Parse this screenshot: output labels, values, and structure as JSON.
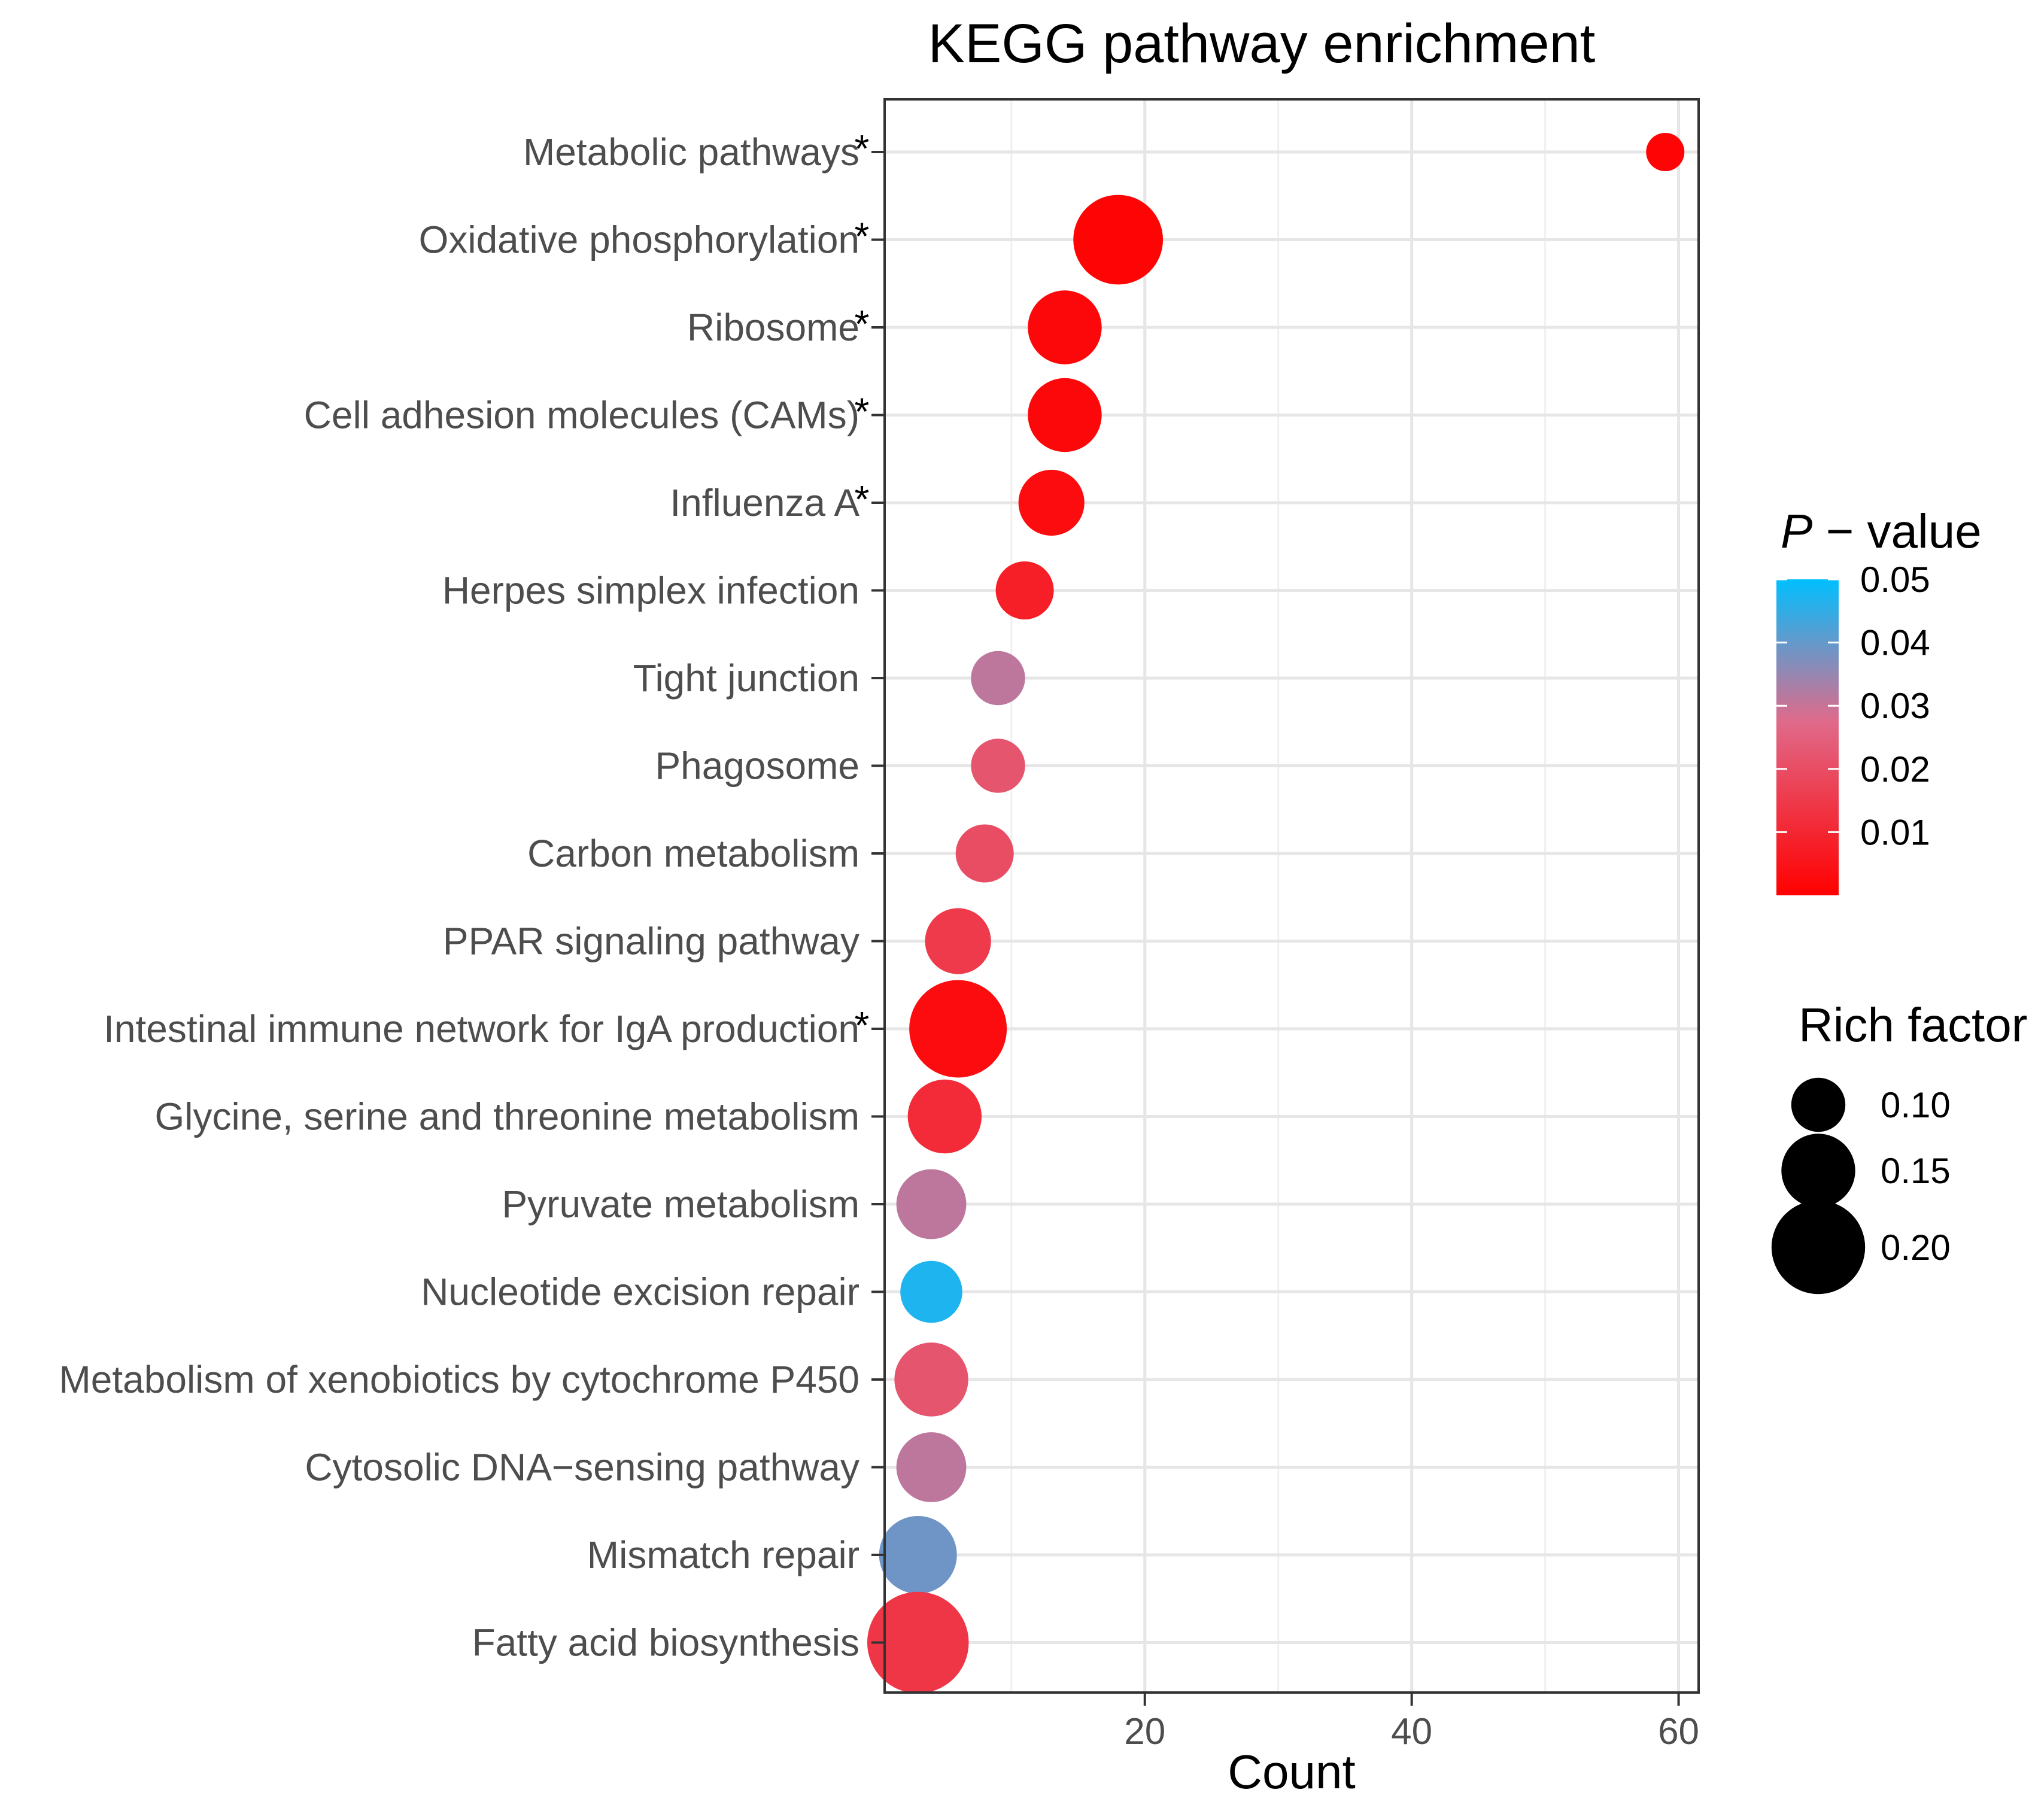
{
  "chart_data": {
    "type": "scatter",
    "title": "KEGG pathway enrichment",
    "xlabel": "Count",
    "ylabel": "",
    "xlim": [
      0.5,
      61.5
    ],
    "xticks": [
      20,
      40,
      60
    ],
    "grid": true,
    "legend_placement": "right",
    "categories": [
      "Metabolic pathways",
      "Oxidative phosphorylation",
      "Ribosome",
      "Cell adhesion molecules (CAMs)",
      "Influenza A",
      "Herpes simplex infection",
      "Tight junction",
      "Phagosome",
      "Carbon metabolism",
      "PPAR signaling pathway",
      "Intestinal immune network for IgA production",
      "Glycine, serine and threonine metabolism",
      "Pyruvate metabolism",
      "Nucleotide excision repair",
      "Metabolism of xenobiotics by cytochrome P450",
      "Cytosolic DNA−sensing pathway",
      "Mismatch repair",
      "Fatty acid biosynthesis"
    ],
    "points": [
      {
        "label": "Metabolic pathways",
        "count": 59,
        "p_value": 0.001,
        "rich_factor": 0.06,
        "star": "*"
      },
      {
        "label": "Oxidative phosphorylation",
        "count": 18,
        "p_value": 0.001,
        "rich_factor": 0.19,
        "star": "*"
      },
      {
        "label": "Ribosome",
        "count": 14,
        "p_value": 0.002,
        "rich_factor": 0.15,
        "star": "*"
      },
      {
        "label": "Cell adhesion molecules (CAMs)",
        "count": 14,
        "p_value": 0.002,
        "rich_factor": 0.15,
        "star": "*"
      },
      {
        "label": "Influenza A",
        "count": 13,
        "p_value": 0.003,
        "rich_factor": 0.13,
        "star": "*"
      },
      {
        "label": "Herpes simplex infection",
        "count": 11,
        "p_value": 0.008,
        "rich_factor": 0.11,
        "star": ""
      },
      {
        "label": "Tight junction",
        "count": 9,
        "p_value": 0.031,
        "rich_factor": 0.1,
        "star": ""
      },
      {
        "label": "Phagosome",
        "count": 9,
        "p_value": 0.022,
        "rich_factor": 0.1,
        "star": ""
      },
      {
        "label": "Carbon metabolism",
        "count": 8,
        "p_value": 0.02,
        "rich_factor": 0.11,
        "star": ""
      },
      {
        "label": "PPAR signaling pathway",
        "count": 6,
        "p_value": 0.015,
        "rich_factor": 0.13,
        "star": ""
      },
      {
        "label": "Intestinal immune network for IgA production",
        "count": 6,
        "p_value": 0.003,
        "rich_factor": 0.21,
        "star": "*"
      },
      {
        "label": "Glycine, serine and threonine metabolism",
        "count": 5,
        "p_value": 0.011,
        "rich_factor": 0.15,
        "star": ""
      },
      {
        "label": "Pyruvate metabolism",
        "count": 4,
        "p_value": 0.031,
        "rich_factor": 0.14,
        "star": ""
      },
      {
        "label": "Nucleotide excision repair",
        "count": 4,
        "p_value": 0.047,
        "rich_factor": 0.12,
        "star": ""
      },
      {
        "label": "Metabolism of xenobiotics by cytochrome P450",
        "count": 4,
        "p_value": 0.022,
        "rich_factor": 0.15,
        "star": ""
      },
      {
        "label": "Cytosolic DNA−sensing pathway",
        "count": 4,
        "p_value": 0.031,
        "rich_factor": 0.14,
        "star": ""
      },
      {
        "label": "Mismatch repair",
        "count": 3,
        "p_value": 0.039,
        "rich_factor": 0.16,
        "star": ""
      },
      {
        "label": "Fatty acid biosynthesis",
        "count": 3,
        "p_value": 0.014,
        "rich_factor": 0.22,
        "star": ""
      }
    ],
    "color_legend": {
      "title_italic": "P",
      "title_rest": " − value",
      "ticks": [
        0.05,
        0.04,
        0.03,
        0.02,
        0.01
      ],
      "tick_labels": [
        "0.05",
        "0.04",
        "0.03",
        "0.02",
        "0.01"
      ],
      "range": [
        0.0,
        0.05
      ],
      "color_low": "#ff0000",
      "color_mid": "#e06a8a",
      "color_high": "#00bfff"
    },
    "size_legend": {
      "title": "Rich factor",
      "values": [
        0.1,
        0.15,
        0.2
      ],
      "labels": [
        "0.10",
        "0.15",
        "0.20"
      ]
    }
  }
}
